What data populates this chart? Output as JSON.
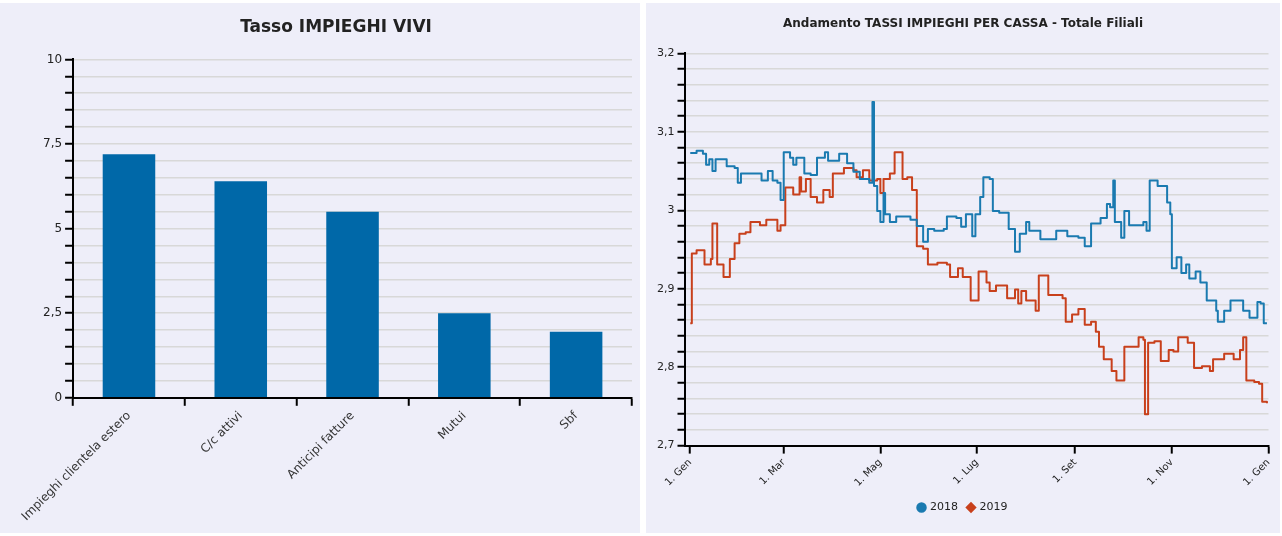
{
  "chart_data": [
    {
      "type": "bar",
      "title": "Tasso IMPIEGHI VIVI",
      "categories": [
        "Impieghi clientela estero",
        "C/c attivi",
        "Anticipi fatture",
        "Mutui",
        "Sbf"
      ],
      "values": [
        7.2,
        6.4,
        5.5,
        2.5,
        1.95
      ],
      "color": "#0068a8",
      "ylim": [
        0,
        10
      ],
      "yticks": [
        0,
        {
          "value": 0.5,
          "label": null
        },
        {
          "value": 1,
          "label": null
        },
        {
          "value": 1.5,
          "label": null
        },
        {
          "value": 2,
          "label": null
        },
        {
          "value": 2.5,
          "label": "2,5"
        },
        {
          "value": 3,
          "label": null
        },
        {
          "value": 3.5,
          "label": null
        },
        {
          "value": 4,
          "label": null
        },
        {
          "value": 4.5,
          "label": null
        },
        5,
        {
          "value": 5.5,
          "label": null
        },
        {
          "value": 6,
          "label": null
        },
        {
          "value": 6.5,
          "label": null
        },
        {
          "value": 7,
          "label": null
        },
        {
          "value": 7.5,
          "label": "7,5"
        },
        {
          "value": 8,
          "label": null
        },
        {
          "value": 8.5,
          "label": null
        },
        {
          "value": 9,
          "label": null
        },
        {
          "value": 9.5,
          "label": null
        },
        10
      ],
      "grid": "y"
    },
    {
      "type": "step",
      "title": "Andamento TASSI IMPIEGHI PER CASSA - Totale Filiali",
      "xlim": [
        "2017-12-29",
        "2019-01-01"
      ],
      "xticks": [
        {
          "value": "2018-01-01",
          "label": "1. Gen"
        },
        {
          "value": "2018-03-01",
          "label": "1. Mar"
        },
        {
          "value": "2018-05-01",
          "label": "1. Mag"
        },
        {
          "value": "2018-07-01",
          "label": "1. Lug"
        },
        {
          "value": "2018-09-01",
          "label": "1. Set"
        },
        {
          "value": "2018-11-01",
          "label": "1. Nov"
        },
        {
          "value": "2019-01-01",
          "label": "1. Gen"
        }
      ],
      "ylim": [
        2.7,
        3.2
      ],
      "yticks": [
        {
          "value": 2.7,
          "label": "2,7"
        },
        {
          "value": 2.72,
          "label": null
        },
        {
          "value": 2.74,
          "label": null
        },
        {
          "value": 2.76,
          "label": null
        },
        {
          "value": 2.78,
          "label": null
        },
        {
          "value": 2.8,
          "label": "2,8"
        },
        {
          "value": 2.82,
          "label": null
        },
        {
          "value": 2.84,
          "label": null
        },
        {
          "value": 2.86,
          "label": null
        },
        {
          "value": 2.88,
          "label": null
        },
        {
          "value": 2.9,
          "label": "2,9"
        },
        {
          "value": 2.92,
          "label": null
        },
        {
          "value": 2.94,
          "label": null
        },
        {
          "value": 2.96,
          "label": null
        },
        {
          "value": 2.98,
          "label": null
        },
        3,
        {
          "value": 3.02,
          "label": null
        },
        {
          "value": 3.04,
          "label": null
        },
        {
          "value": 3.06,
          "label": null
        },
        {
          "value": 3.08,
          "label": null
        },
        {
          "value": 3.1,
          "label": "3,1"
        },
        {
          "value": 3.12,
          "label": null
        },
        {
          "value": 3.14,
          "label": null
        },
        {
          "value": 3.16,
          "label": null
        },
        {
          "value": 3.18,
          "label": null
        },
        {
          "value": 3.2,
          "label": "3,2"
        }
      ],
      "grid": "y",
      "legend": "bottom",
      "series": [
        {
          "name": "2018",
          "color": "#1a7ab0",
          "x": [
            "2018-01-01",
            "2018-01-05",
            "2018-01-09",
            "2018-01-11",
            "2018-01-13",
            "2018-01-15",
            "2018-01-17",
            "2018-01-24",
            "2018-01-29",
            "2018-01-31",
            "2018-02-02",
            "2018-02-10",
            "2018-02-15",
            "2018-02-19",
            "2018-02-22",
            "2018-02-25",
            "2018-02-27",
            "2018-03-01",
            "2018-03-05",
            "2018-03-07",
            "2018-03-09",
            "2018-03-14",
            "2018-03-18",
            "2018-03-22",
            "2018-03-27",
            "2018-03-29",
            "2018-04-02",
            "2018-04-05",
            "2018-04-10",
            "2018-04-14",
            "2018-04-18",
            "2018-04-24",
            "2018-04-26",
            "2018-04-27",
            "2018-04-29",
            "2018-05-01",
            "2018-05-03",
            "2018-05-04",
            "2018-05-07",
            "2018-05-11",
            "2018-05-20",
            "2018-05-24",
            "2018-05-28",
            "2018-05-31",
            "2018-06-04",
            "2018-06-10",
            "2018-06-12",
            "2018-06-18",
            "2018-06-21",
            "2018-06-24",
            "2018-06-28",
            "2018-06-30",
            "2018-07-03",
            "2018-07-05",
            "2018-07-09",
            "2018-07-11",
            "2018-07-15",
            "2018-07-21",
            "2018-07-25",
            "2018-07-28",
            "2018-08-01",
            "2018-08-03",
            "2018-08-10",
            "2018-08-20",
            "2018-08-27",
            "2018-09-03",
            "2018-09-07",
            "2018-09-10",
            "2018-09-11",
            "2018-09-17",
            "2018-09-21",
            "2018-09-23",
            "2018-09-25",
            "2018-09-26",
            "2018-09-30",
            "2018-10-02",
            "2018-10-05",
            "2018-10-14",
            "2018-10-16",
            "2018-10-18",
            "2018-10-23",
            "2018-10-29",
            "2018-10-31",
            "2018-11-01",
            "2018-11-04",
            "2018-11-07",
            "2018-11-10",
            "2018-11-12",
            "2018-11-16",
            "2018-11-19",
            "2018-11-23",
            "2018-11-29",
            "2018-11-30",
            "2018-12-04",
            "2018-12-08",
            "2018-12-12",
            "2018-12-16",
            "2018-12-20",
            "2018-12-25",
            "2018-12-27",
            "2018-12-29",
            "2018-12-31"
          ],
          "values": [
            3.073,
            3.076,
            3.072,
            3.058,
            3.065,
            3.05,
            3.065,
            3.056,
            3.054,
            3.035,
            3.047,
            3.047,
            3.038,
            3.05,
            3.038,
            3.035,
            3.013,
            3.074,
            3.067,
            3.058,
            3.067,
            3.047,
            3.045,
            3.067,
            3.074,
            3.063,
            3.063,
            3.072,
            3.06,
            3.049,
            3.04,
            3.035,
            3.138,
            3.031,
            2.999,
            2.985,
            3.022,
            2.995,
            2.985,
            2.992,
            2.988,
            2.98,
            2.96,
            2.976,
            2.974,
            2.976,
            2.992,
            2.99,
            2.979,
            2.995,
            2.967,
            2.995,
            3.017,
            3.042,
            3.04,
            2.999,
            2.997,
            2.976,
            2.947,
            2.97,
            2.985,
            2.974,
            2.963,
            2.974,
            2.967,
            2.965,
            2.954,
            2.954,
            2.983,
            2.99,
            3.008,
            3.004,
            3.038,
            2.985,
            2.965,
            2.999,
            2.981,
            2.985,
            2.974,
            3.038,
            3.031,
            3.01,
            2.995,
            2.926,
            2.94,
            2.92,
            2.931,
            2.913,
            2.922,
            2.908,
            2.885,
            2.872,
            2.858,
            2.872,
            2.885,
            2.885,
            2.872,
            2.863,
            2.883,
            2.881,
            2.856,
            2.856
          ]
        },
        {
          "name": "2019",
          "color": "#c8401c",
          "x": [
            "2018-01-01",
            "2018-01-02",
            "2018-01-05",
            "2018-01-08",
            "2018-01-10",
            "2018-01-14",
            "2018-01-15",
            "2018-01-17",
            "2018-01-18",
            "2018-01-22",
            "2018-01-26",
            "2018-01-29",
            "2018-02-01",
            "2018-02-05",
            "2018-02-08",
            "2018-02-14",
            "2018-02-18",
            "2018-02-24",
            "2018-02-25",
            "2018-02-27",
            "2018-03-02",
            "2018-03-07",
            "2018-03-11",
            "2018-03-12",
            "2018-03-15",
            "2018-03-18",
            "2018-03-22",
            "2018-03-26",
            "2018-03-30",
            "2018-04-01",
            "2018-04-08",
            "2018-04-14",
            "2018-04-16",
            "2018-04-20",
            "2018-04-24",
            "2018-04-29",
            "2018-05-01",
            "2018-05-03",
            "2018-05-07",
            "2018-05-10",
            "2018-05-12",
            "2018-05-15",
            "2018-05-18",
            "2018-05-21",
            "2018-05-24",
            "2018-05-28",
            "2018-05-31",
            "2018-06-06",
            "2018-06-12",
            "2018-06-14",
            "2018-06-19",
            "2018-06-22",
            "2018-06-27",
            "2018-06-30",
            "2018-07-02",
            "2018-07-07",
            "2018-07-09",
            "2018-07-13",
            "2018-07-20",
            "2018-07-25",
            "2018-07-27",
            "2018-07-29",
            "2018-08-01",
            "2018-08-07",
            "2018-08-09",
            "2018-08-12",
            "2018-08-15",
            "2018-08-24",
            "2018-08-26",
            "2018-08-30",
            "2018-09-03",
            "2018-09-07",
            "2018-09-11",
            "2018-09-14",
            "2018-09-16",
            "2018-09-19",
            "2018-09-24",
            "2018-09-27",
            "2018-09-30",
            "2018-10-02",
            "2018-10-11",
            "2018-10-14",
            "2018-10-15",
            "2018-10-17",
            "2018-10-21",
            "2018-10-25",
            "2018-10-30",
            "2018-11-02",
            "2018-11-05",
            "2018-11-11",
            "2018-11-15",
            "2018-11-20",
            "2018-11-25",
            "2018-11-27",
            "2018-12-04",
            "2018-12-10",
            "2018-12-14",
            "2018-12-16",
            "2018-12-18",
            "2018-12-23",
            "2018-12-26",
            "2018-12-28",
            "2018-12-31"
          ],
          "values": [
            2.856,
            2.945,
            2.949,
            2.949,
            2.931,
            2.938,
            2.983,
            2.983,
            2.931,
            2.915,
            2.938,
            2.958,
            2.97,
            2.972,
            2.985,
            2.981,
            2.988,
            2.988,
            2.974,
            2.981,
            3.029,
            3.02,
            3.042,
            3.024,
            3.04,
            3.017,
            3.01,
            3.026,
            3.017,
            3.047,
            3.054,
            3.051,
            3.042,
            3.051,
            3.038,
            3.04,
            3.022,
            3.04,
            3.047,
            3.074,
            3.074,
            3.04,
            3.042,
            3.026,
            2.954,
            2.951,
            2.931,
            2.933,
            2.931,
            2.915,
            2.926,
            2.915,
            2.885,
            2.885,
            2.922,
            2.908,
            2.897,
            2.904,
            2.888,
            2.899,
            2.881,
            2.897,
            2.885,
            2.872,
            2.917,
            2.917,
            2.892,
            2.888,
            2.858,
            2.867,
            2.874,
            2.854,
            2.858,
            2.845,
            2.826,
            2.81,
            2.795,
            2.783,
            2.783,
            2.826,
            2.838,
            2.835,
            2.74,
            2.831,
            2.833,
            2.808,
            2.822,
            2.82,
            2.838,
            2.831,
            2.799,
            2.801,
            2.795,
            2.81,
            2.817,
            2.81,
            2.822,
            2.838,
            2.783,
            2.781,
            2.779,
            2.756,
            2.754
          ]
        }
      ]
    }
  ]
}
